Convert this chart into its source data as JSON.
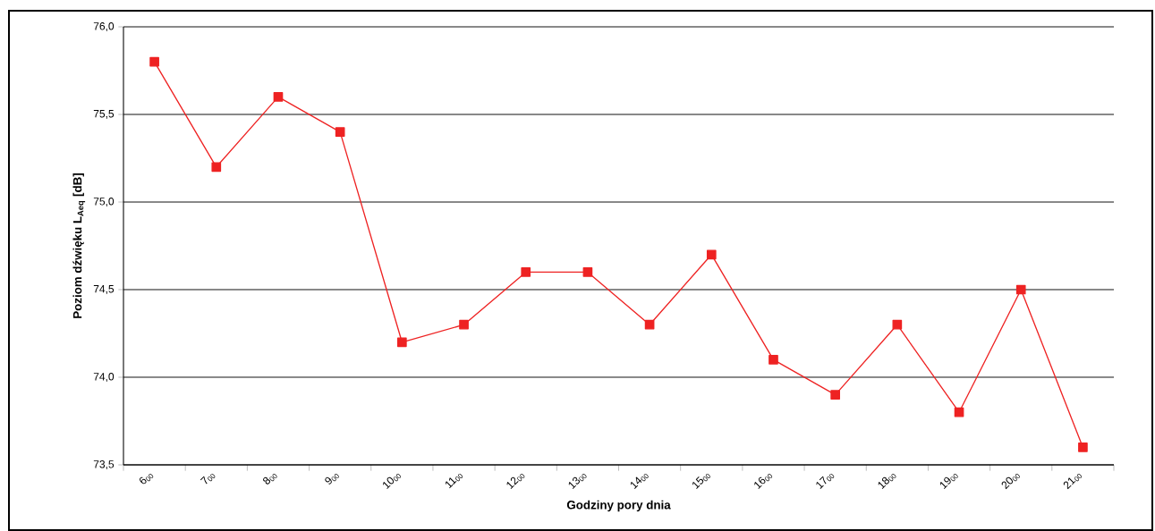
{
  "chart_data": {
    "type": "line",
    "xlabel": "Godziny pory dnia",
    "ylabel": "Poziom  dźwięku L$_{Aeq}$ [dB]",
    "categories": [
      "6$_{00}$",
      "7$_{00}$",
      "8$_{00}$",
      "9$_{00}$",
      "10$_{00}$",
      "11$_{00}$",
      "12$_{00}$",
      "13$_{00}$",
      "14$_{00}$",
      "15$_{00}$",
      "16$_{00}$",
      "17$_{00}$",
      "18$_{00}$",
      "19$_{00}$",
      "20$_{00}$",
      "21$_{00}$"
    ],
    "values": [
      75.8,
      75.2,
      75.6,
      75.4,
      74.2,
      74.3,
      74.6,
      74.6,
      74.3,
      74.7,
      74.1,
      73.9,
      74.3,
      73.8,
      74.5,
      73.6
    ],
    "color": "#ee2222",
    "marker": "square",
    "line_style": "solid",
    "ylim": [
      73.5,
      76.0
    ],
    "yticks": [
      {
        "value": 73.5,
        "label": "73,5"
      },
      {
        "value": 74.0,
        "label": "74,0"
      },
      {
        "value": 74.5,
        "label": "74,5"
      },
      {
        "value": 75.0,
        "label": "75,0"
      },
      {
        "value": 75.5,
        "label": "75,5"
      },
      {
        "value": 76.0,
        "label": "76,0"
      }
    ],
    "grid": "y"
  }
}
